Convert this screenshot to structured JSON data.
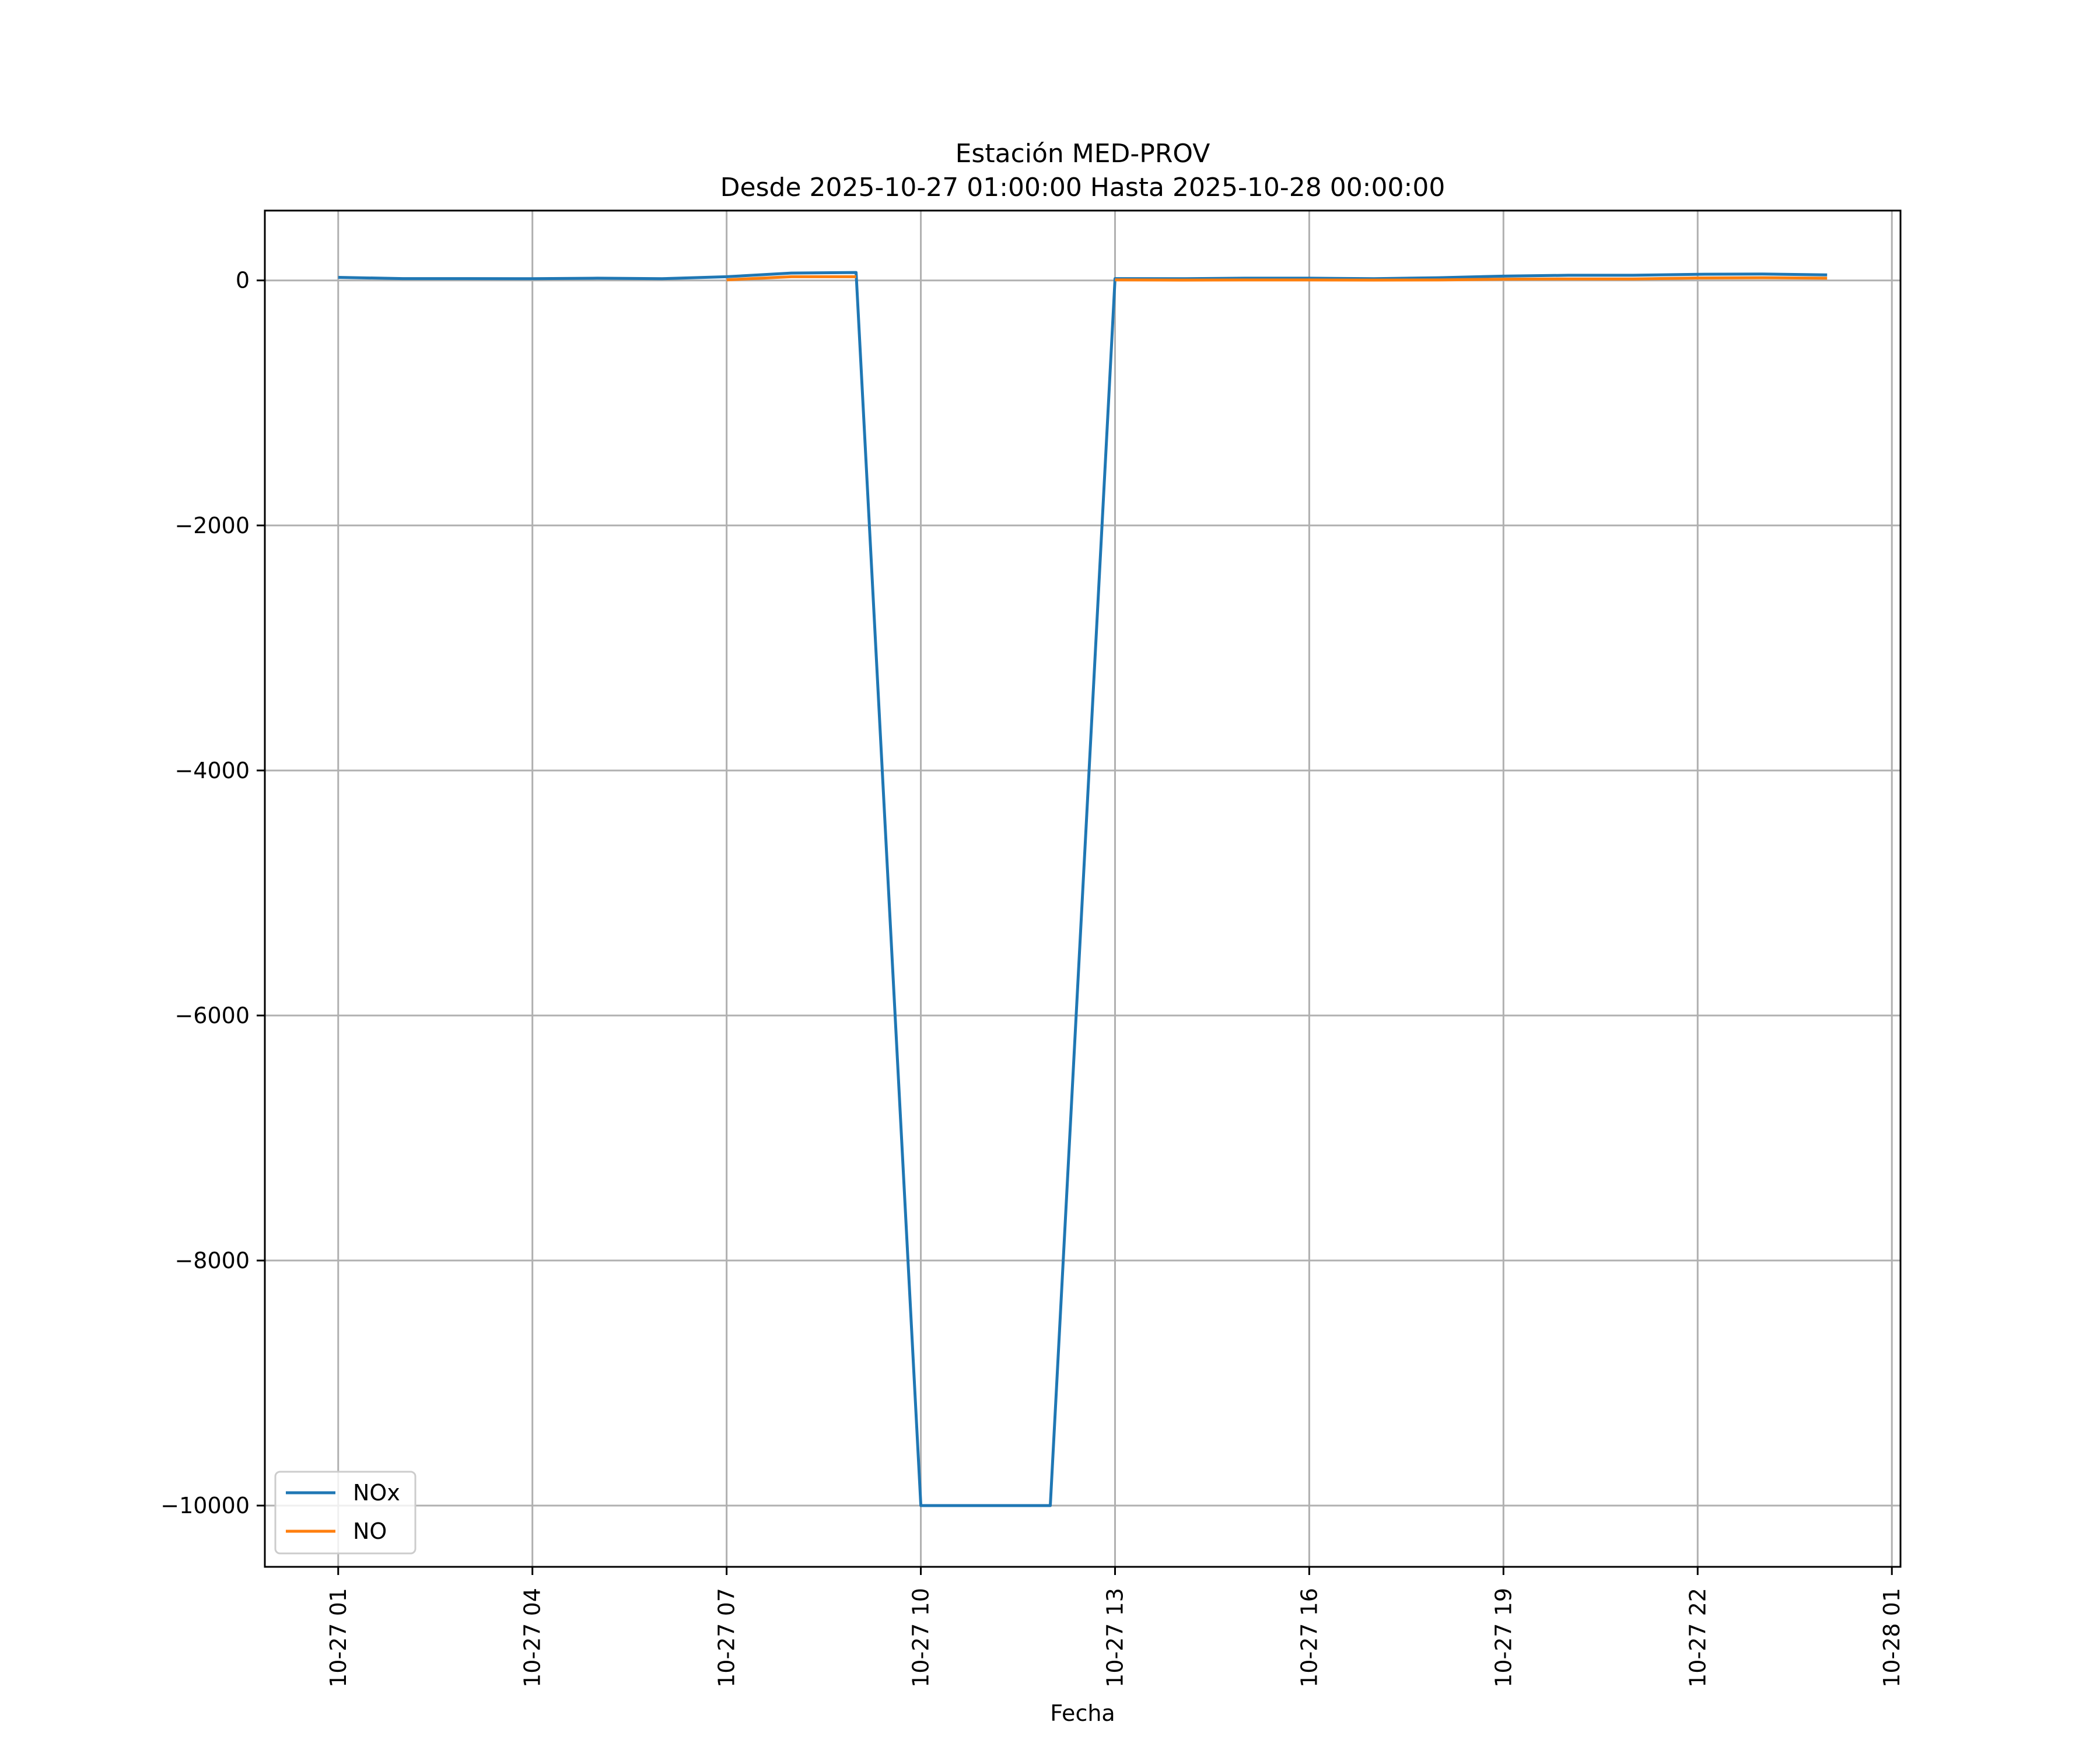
{
  "chart_data": {
    "type": "line",
    "title": "Estación MED-PROV",
    "subtitle": "Desde 2025-10-27 01:00:00 Hasta 2025-10-28 00:00:00",
    "xlabel": "Fecha",
    "ylabel": "",
    "x_type": "datetime",
    "xlim": [
      "2025-10-26T23:52:00",
      "2025-10-28T01:08:00"
    ],
    "ylim": [
      -10500,
      570
    ],
    "grid": true,
    "legend_position": "lower-left",
    "x_ticks": [
      {
        "value": "2025-10-27T01:00:00",
        "label": "10-27 01"
      },
      {
        "value": "2025-10-27T04:00:00",
        "label": "10-27 04"
      },
      {
        "value": "2025-10-27T07:00:00",
        "label": "10-27 07"
      },
      {
        "value": "2025-10-27T10:00:00",
        "label": "10-27 10"
      },
      {
        "value": "2025-10-27T13:00:00",
        "label": "10-27 13"
      },
      {
        "value": "2025-10-27T16:00:00",
        "label": "10-27 16"
      },
      {
        "value": "2025-10-27T19:00:00",
        "label": "10-27 19"
      },
      {
        "value": "2025-10-27T22:00:00",
        "label": "10-27 22"
      },
      {
        "value": "2025-10-28T01:00:00",
        "label": "10-28 01"
      }
    ],
    "y_ticks": [
      {
        "value": 0,
        "label": "0"
      },
      {
        "value": -2000,
        "label": "−2000"
      },
      {
        "value": -4000,
        "label": "−4000"
      },
      {
        "value": -6000,
        "label": "−6000"
      },
      {
        "value": -8000,
        "label": "−8000"
      },
      {
        "value": -10000,
        "label": "−10000"
      }
    ],
    "series": [
      {
        "name": "NOx",
        "color": "#1f77b4",
        "points": [
          {
            "x": "2025-10-27T01:00:00",
            "y": 25
          },
          {
            "x": "2025-10-27T02:00:00",
            "y": 15
          },
          {
            "x": "2025-10-27T03:00:00",
            "y": 15
          },
          {
            "x": "2025-10-27T04:00:00",
            "y": 14
          },
          {
            "x": "2025-10-27T05:00:00",
            "y": 18
          },
          {
            "x": "2025-10-27T06:00:00",
            "y": 14
          },
          {
            "x": "2025-10-27T07:00:00",
            "y": 30
          },
          {
            "x": "2025-10-27T08:00:00",
            "y": 60
          },
          {
            "x": "2025-10-27T09:00:00",
            "y": 65
          },
          {
            "x": "2025-10-27T10:00:00",
            "y": -10000
          },
          {
            "x": "2025-10-27T11:00:00",
            "y": -10000
          },
          {
            "x": "2025-10-27T12:00:00",
            "y": -10000
          },
          {
            "x": "2025-10-27T13:00:00",
            "y": 15
          },
          {
            "x": "2025-10-27T14:00:00",
            "y": 14
          },
          {
            "x": "2025-10-27T15:00:00",
            "y": 18
          },
          {
            "x": "2025-10-27T16:00:00",
            "y": 18
          },
          {
            "x": "2025-10-27T17:00:00",
            "y": 14
          },
          {
            "x": "2025-10-27T18:00:00",
            "y": 22
          },
          {
            "x": "2025-10-27T19:00:00",
            "y": 35
          },
          {
            "x": "2025-10-27T20:00:00",
            "y": 42
          },
          {
            "x": "2025-10-27T21:00:00",
            "y": 42
          },
          {
            "x": "2025-10-27T22:00:00",
            "y": 50
          },
          {
            "x": "2025-10-27T23:00:00",
            "y": 52
          },
          {
            "x": "2025-10-28T00:00:00",
            "y": 45
          }
        ]
      },
      {
        "name": "NO",
        "color": "#ff7f0e",
        "points": [
          {
            "x": "2025-10-27T07:00:00",
            "y": 5
          },
          {
            "x": "2025-10-27T08:00:00",
            "y": 30
          },
          {
            "x": "2025-10-27T09:00:00",
            "y": 30
          },
          {
            "x": null,
            "y": null
          },
          {
            "x": "2025-10-27T13:00:00",
            "y": 5
          },
          {
            "x": "2025-10-27T14:00:00",
            "y": 3
          },
          {
            "x": "2025-10-27T15:00:00",
            "y": 4
          },
          {
            "x": "2025-10-27T16:00:00",
            "y": 4
          },
          {
            "x": "2025-10-27T17:00:00",
            "y": 3
          },
          {
            "x": "2025-10-27T18:00:00",
            "y": 4
          },
          {
            "x": "2025-10-27T19:00:00",
            "y": 10
          },
          {
            "x": "2025-10-27T20:00:00",
            "y": 12
          },
          {
            "x": "2025-10-27T21:00:00",
            "y": 12
          },
          {
            "x": "2025-10-27T22:00:00",
            "y": 20
          },
          {
            "x": "2025-10-27T23:00:00",
            "y": 22
          },
          {
            "x": "2025-10-28T00:00:00",
            "y": 18
          }
        ]
      }
    ]
  }
}
